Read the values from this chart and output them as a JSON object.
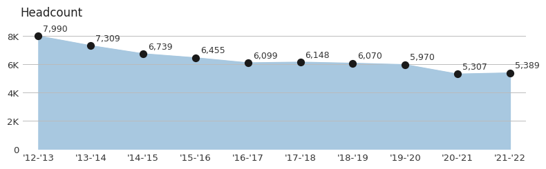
{
  "title": "Headcount",
  "categories": [
    "'12-'13",
    "'13-'14",
    "'14-'15",
    "'15-'16",
    "'16-'17",
    "'17-'18",
    "'18-'19",
    "'19-'20",
    "'20-'21",
    "'21-'22"
  ],
  "values": [
    7990,
    7309,
    6739,
    6455,
    6099,
    6148,
    6070,
    5970,
    5307,
    5389
  ],
  "labels": [
    "7,990",
    "7,309",
    "6,739",
    "6,455",
    "6,099",
    "6,148",
    "6,070",
    "5,970",
    "5,307",
    "5,389"
  ],
  "fill_color": "#a8c8e0",
  "dot_color": "#1a1a1a",
  "label_color": "#333333",
  "title_color": "#222222",
  "background_color": "#ffffff",
  "ylim": [
    0,
    9000
  ],
  "yticks": [
    0,
    2000,
    4000,
    6000,
    8000
  ],
  "ytick_labels": [
    "0",
    "2K",
    "4K",
    "6K",
    "8K"
  ],
  "grid_color": "#bbbbbb",
  "title_fontsize": 12,
  "tick_fontsize": 9.5,
  "label_fontsize": 9
}
